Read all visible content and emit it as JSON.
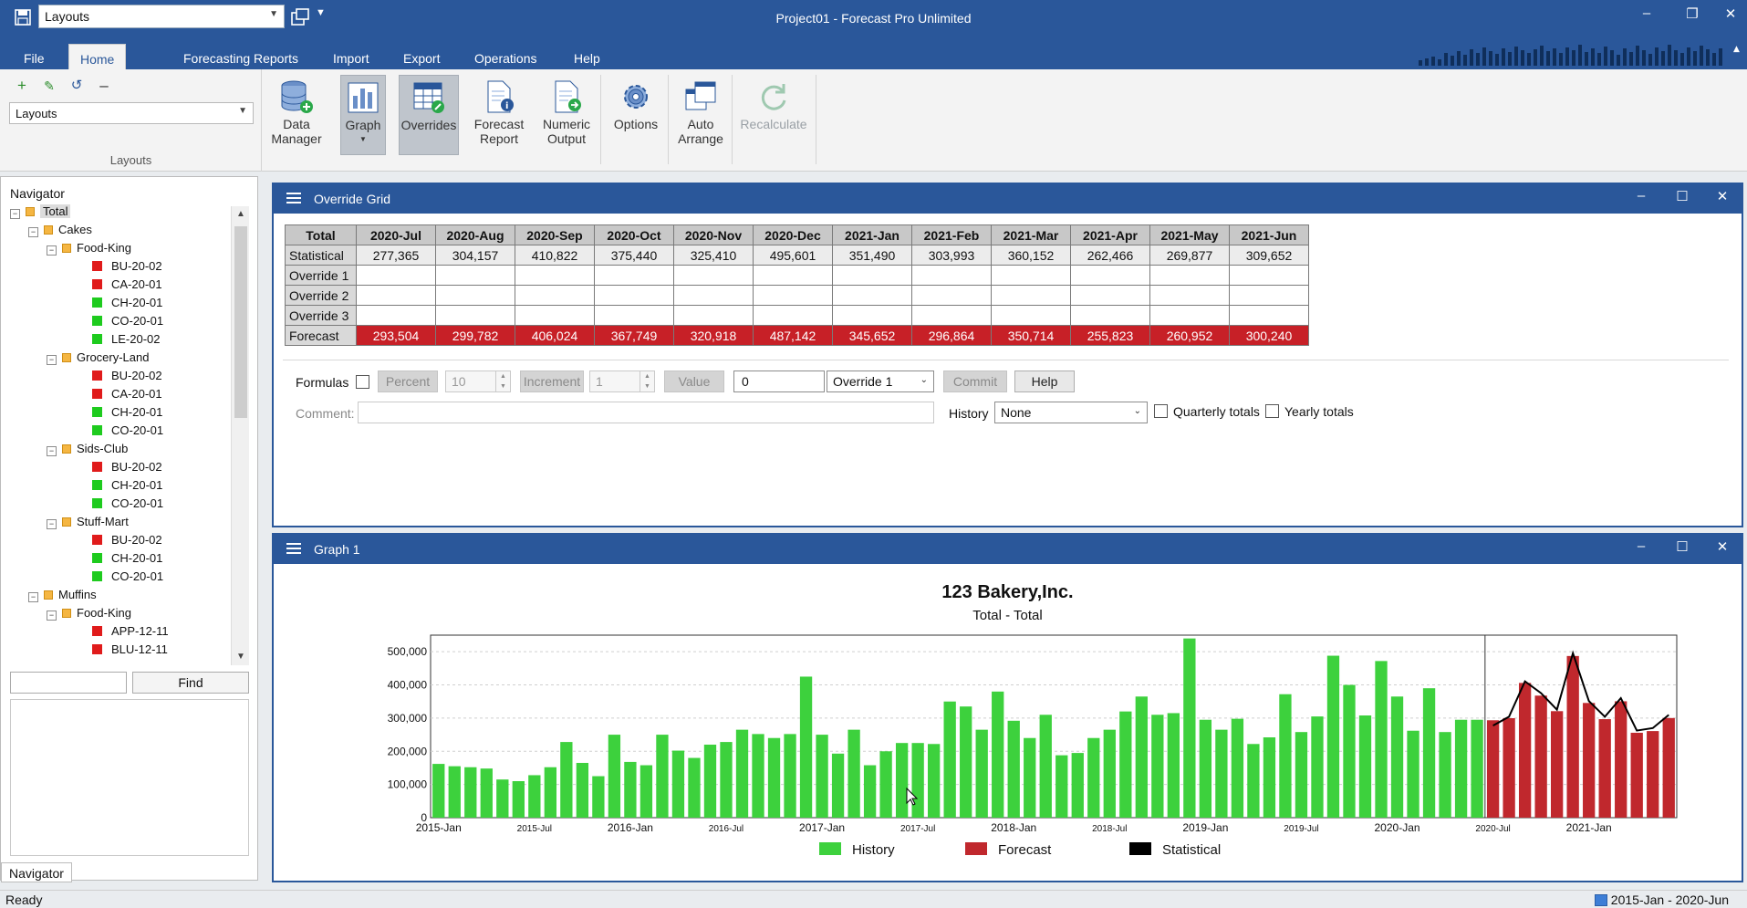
{
  "titlebar": {
    "layout_combo": "Layouts",
    "title": "Project01 - Forecast Pro Unlimited"
  },
  "menu": {
    "tabs": [
      "File",
      "Home",
      "Forecasting",
      "Reports",
      "Import",
      "Export",
      "Operations",
      "Help"
    ],
    "active": "Home"
  },
  "ribbon": {
    "layouts_select": "Layouts",
    "layouts_group_label": "Layouts",
    "buttons": {
      "data_manager": "Data Manager",
      "graph": "Graph",
      "overrides": "Overrides",
      "forecast_report": "Forecast Report",
      "numeric_output": "Numeric Output",
      "options": "Options",
      "auto_arrange": "Auto Arrange",
      "recalculate": "Recalculate"
    }
  },
  "navigator": {
    "title": "Navigator",
    "find_label": "Find",
    "tab_label": "Navigator",
    "tree": [
      {
        "label": "Total",
        "level": 0,
        "kind": "folder"
      },
      {
        "label": "Cakes",
        "level": 1,
        "kind": "folder"
      },
      {
        "label": "Food-King",
        "level": 2,
        "kind": "folder"
      },
      {
        "label": "BU-20-02",
        "level": 3,
        "kind": "red"
      },
      {
        "label": "CA-20-01",
        "level": 3,
        "kind": "red"
      },
      {
        "label": "CH-20-01",
        "level": 3,
        "kind": "green"
      },
      {
        "label": "CO-20-01",
        "level": 3,
        "kind": "green"
      },
      {
        "label": "LE-20-02",
        "level": 3,
        "kind": "green"
      },
      {
        "label": "Grocery-Land",
        "level": 2,
        "kind": "folder"
      },
      {
        "label": "BU-20-02",
        "level": 3,
        "kind": "red"
      },
      {
        "label": "CA-20-01",
        "level": 3,
        "kind": "red"
      },
      {
        "label": "CH-20-01",
        "level": 3,
        "kind": "green"
      },
      {
        "label": "CO-20-01",
        "level": 3,
        "kind": "green"
      },
      {
        "label": "Sids-Club",
        "level": 2,
        "kind": "folder"
      },
      {
        "label": "BU-20-02",
        "level": 3,
        "kind": "red"
      },
      {
        "label": "CH-20-01",
        "level": 3,
        "kind": "green"
      },
      {
        "label": "CO-20-01",
        "level": 3,
        "kind": "green"
      },
      {
        "label": "Stuff-Mart",
        "level": 2,
        "kind": "folder"
      },
      {
        "label": "BU-20-02",
        "level": 3,
        "kind": "red"
      },
      {
        "label": "CH-20-01",
        "level": 3,
        "kind": "green"
      },
      {
        "label": "CO-20-01",
        "level": 3,
        "kind": "green"
      },
      {
        "label": "Muffins",
        "level": 1,
        "kind": "folder"
      },
      {
        "label": "Food-King",
        "level": 2,
        "kind": "folder"
      },
      {
        "label": "APP-12-11",
        "level": 3,
        "kind": "red"
      },
      {
        "label": "BLU-12-11",
        "level": 3,
        "kind": "red"
      }
    ]
  },
  "override_panel": {
    "title": "Override Grid",
    "corner": "Total",
    "columns": [
      "2020-Jul",
      "2020-Aug",
      "2020-Sep",
      "2020-Oct",
      "2020-Nov",
      "2020-Dec",
      "2021-Jan",
      "2021-Feb",
      "2021-Mar",
      "2021-Apr",
      "2021-May",
      "2021-Jun"
    ],
    "rows": [
      {
        "label": "Statistical",
        "values": [
          "277,365",
          "304,157",
          "410,822",
          "375,440",
          "325,410",
          "495,601",
          "351,490",
          "303,993",
          "360,152",
          "262,466",
          "269,877",
          "309,652"
        ]
      },
      {
        "label": "Override 1",
        "values": [
          "",
          "",
          "",
          "",
          "",
          "",
          "",
          "",
          "",
          "",
          "",
          ""
        ]
      },
      {
        "label": "Override 2",
        "values": [
          "",
          "",
          "",
          "",
          "",
          "",
          "",
          "",
          "",
          "",
          "",
          ""
        ]
      },
      {
        "label": "Override 3",
        "values": [
          "",
          "",
          "",
          "",
          "",
          "",
          "",
          "",
          "",
          "",
          "",
          ""
        ]
      },
      {
        "label": "Forecast",
        "values": [
          "293,504",
          "299,782",
          "406,024",
          "367,749",
          "320,918",
          "487,142",
          "345,652",
          "296,864",
          "350,714",
          "255,823",
          "260,952",
          "300,240"
        ]
      }
    ],
    "controls": {
      "formulas_label": "Formulas",
      "percent_label": "Percent",
      "percent_value": "10",
      "increment_label": "Increment",
      "increment_value": "1",
      "value_label": "Value",
      "value_input": "0",
      "override_select": "Override 1",
      "commit_label": "Commit",
      "help_label": "Help",
      "comment_label": "Comment:",
      "history_label": "History",
      "history_select": "None",
      "quarterly_label": "Quarterly totals",
      "yearly_label": "Yearly totals"
    }
  },
  "graph_panel": {
    "title": "Graph 1"
  },
  "chart_data": {
    "type": "bar",
    "title": "123 Bakery,Inc.",
    "subtitle": "Total - Total",
    "xlabel": "",
    "ylabel": "",
    "ylim": [
      0,
      550000
    ],
    "yticks": [
      "0",
      "100,000",
      "200,000",
      "300,000",
      "400,000",
      "500,000"
    ],
    "x_ticks": [
      "2015-Jan",
      "2015-Jul",
      "2016-Jan",
      "2016-Jul",
      "2017-Jan",
      "2017-Jul",
      "2018-Jan",
      "2018-Jul",
      "2019-Jan",
      "2019-Jul",
      "2020-Jan",
      "2020-Jul",
      "2021-Jan"
    ],
    "grid": true,
    "legend_position": "bottom",
    "legend": [
      "History",
      "Forecast",
      "Statistical"
    ],
    "colors": {
      "history": "#3dd13d",
      "forecast": "#c0282d",
      "statistical": "#000000"
    },
    "history_start": "2015-Jan",
    "history": [
      162000,
      155000,
      152000,
      148000,
      115000,
      110000,
      128000,
      152000,
      228000,
      165000,
      125000,
      250000,
      168000,
      158000,
      250000,
      202000,
      180000,
      220000,
      228000,
      265000,
      252000,
      240000,
      252000,
      425000,
      250000,
      193000,
      265000,
      158000,
      200000,
      225000,
      225000,
      222000,
      350000,
      335000,
      265000,
      380000,
      292000,
      240000,
      310000,
      188000,
      195000,
      240000,
      265000,
      320000,
      365000,
      310000,
      315000,
      540000,
      295000,
      265000,
      298000,
      222000,
      242000,
      372000,
      258000,
      305000,
      488000,
      400000,
      308000,
      472000,
      365000,
      262000,
      390000,
      258000,
      295000,
      295000
    ],
    "forecast_start": "2020-Jul",
    "forecast": [
      293504,
      299782,
      406024,
      367749,
      320918,
      487142,
      345652,
      296864,
      350714,
      255823,
      260952,
      300240
    ],
    "statistical": [
      277365,
      304157,
      410822,
      375440,
      325410,
      495601,
      351490,
      303993,
      360152,
      262466,
      269877,
      309652
    ]
  },
  "status": {
    "left": "Ready",
    "right": "2015-Jan - 2020-Jun"
  }
}
